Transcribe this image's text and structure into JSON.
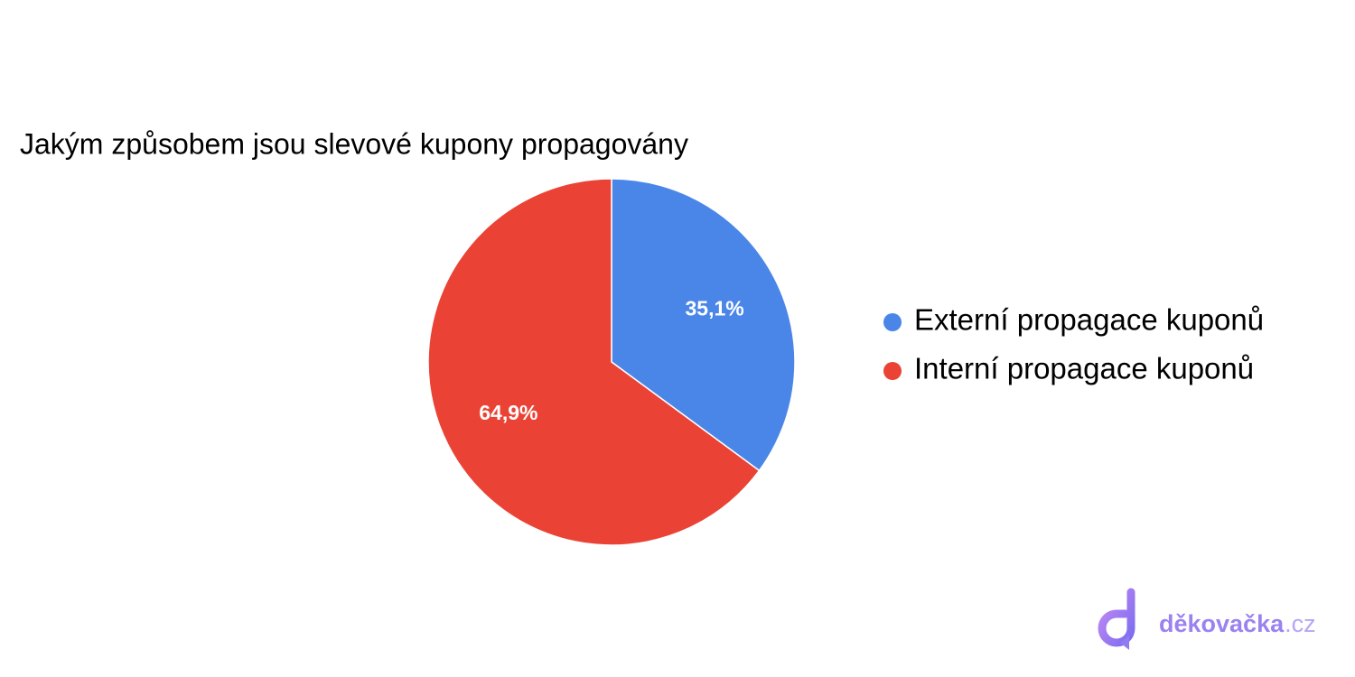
{
  "chart_data": {
    "type": "pie",
    "title": "Jakým způsobem jsou slevové kupony propagovány",
    "categories": [
      "Externí propagace kuponů",
      "Interní propagace kuponů"
    ],
    "values": [
      35.1,
      64.9
    ],
    "value_labels": [
      "35,1%",
      "64,9%"
    ],
    "colors": [
      "#4a86e8",
      "#ea4335"
    ],
    "legend": "right"
  },
  "brand": {
    "name": "děkovačka",
    "suffix": ".cz"
  }
}
